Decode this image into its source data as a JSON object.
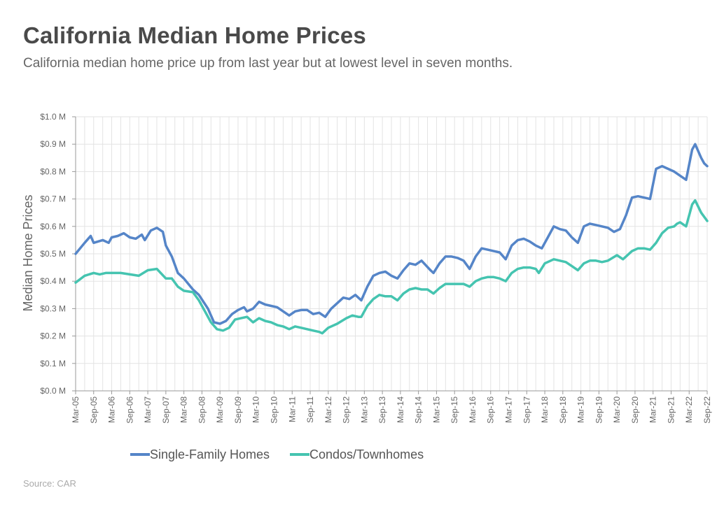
{
  "title": "California Median Home Prices",
  "subtitle": "California median home price up from last year but at lowest level in seven months.",
  "source": "Source: CAR",
  "colors": {
    "sfh": "#5585c8",
    "condo": "#45c4b0",
    "grid": "#e3e3e3",
    "axis": "#999999"
  },
  "chart_data": {
    "type": "line",
    "title": "California Median Home Prices",
    "xlabel": "",
    "ylabel": "Median Home Prices",
    "ylim": [
      0,
      1.0
    ],
    "y_ticks": [
      0,
      0.1,
      0.2,
      0.3,
      0.4,
      0.5,
      0.6,
      0.7,
      0.8,
      0.9,
      1.0
    ],
    "y_tick_labels": [
      "$0.0 M",
      "$0.1 M",
      "$0.2 M",
      "$0.3 M",
      "$0.4 M",
      "$0.5 M",
      "$0.6 M",
      "$0.7 M",
      "$0.8 M",
      "$0.9 M",
      "$1.0 M"
    ],
    "x_range": [
      "Mar-05",
      "Sep-22"
    ],
    "x_tick_labels": [
      "Mar-05",
      "Sep-05",
      "Mar-06",
      "Sep-06",
      "Mar-07",
      "Sep-07",
      "Mar-08",
      "Sep-08",
      "Mar-09",
      "Sep-09",
      "Mar-10",
      "Sep-10",
      "Mar-11",
      "Sep-11",
      "Mar-12",
      "Sep-12",
      "Mar-13",
      "Sep-13",
      "Mar-14",
      "Sep-14",
      "Mar-15",
      "Sep-15",
      "Mar-16",
      "Sep-16",
      "Mar-17",
      "Sep-17",
      "Mar-18",
      "Sep-18",
      "Mar-19",
      "Sep-19",
      "Mar-20",
      "Sep-20",
      "Mar-21",
      "Sep-21",
      "Mar-22",
      "Sep-22"
    ],
    "grid": true,
    "legend_position": "bottom",
    "series": [
      {
        "name": "Single-Family Homes",
        "color": "#5585c8",
        "points": [
          [
            "Mar-05",
            0.5
          ],
          [
            "Jun-05",
            0.54
          ],
          [
            "Aug-05",
            0.565
          ],
          [
            "Sep-05",
            0.54
          ],
          [
            "Dec-05",
            0.55
          ],
          [
            "Feb-06",
            0.54
          ],
          [
            "Mar-06",
            0.56
          ],
          [
            "May-06",
            0.565
          ],
          [
            "Jul-06",
            0.575
          ],
          [
            "Sep-06",
            0.56
          ],
          [
            "Nov-06",
            0.555
          ],
          [
            "Jan-07",
            0.57
          ],
          [
            "Feb-07",
            0.55
          ],
          [
            "Apr-07",
            0.585
          ],
          [
            "Jun-07",
            0.595
          ],
          [
            "Aug-07",
            0.58
          ],
          [
            "Sep-07",
            0.53
          ],
          [
            "Nov-07",
            0.49
          ],
          [
            "Jan-08",
            0.43
          ],
          [
            "Mar-08",
            0.41
          ],
          [
            "Jun-08",
            0.37
          ],
          [
            "Aug-08",
            0.35
          ],
          [
            "Nov-08",
            0.3
          ],
          [
            "Jan-09",
            0.25
          ],
          [
            "Mar-09",
            0.245
          ],
          [
            "May-09",
            0.255
          ],
          [
            "Jul-09",
            0.28
          ],
          [
            "Sep-09",
            0.295
          ],
          [
            "Nov-09",
            0.305
          ],
          [
            "Dec-09",
            0.29
          ],
          [
            "Feb-10",
            0.3
          ],
          [
            "Apr-10",
            0.325
          ],
          [
            "Jun-10",
            0.315
          ],
          [
            "Aug-10",
            0.31
          ],
          [
            "Oct-10",
            0.305
          ],
          [
            "Dec-10",
            0.29
          ],
          [
            "Feb-11",
            0.275
          ],
          [
            "Apr-11",
            0.29
          ],
          [
            "Jun-11",
            0.295
          ],
          [
            "Aug-11",
            0.295
          ],
          [
            "Oct-11",
            0.28
          ],
          [
            "Dec-11",
            0.285
          ],
          [
            "Feb-12",
            0.27
          ],
          [
            "Apr-12",
            0.3
          ],
          [
            "Jun-12",
            0.32
          ],
          [
            "Aug-12",
            0.34
          ],
          [
            "Oct-12",
            0.335
          ],
          [
            "Dec-12",
            0.35
          ],
          [
            "Feb-13",
            0.33
          ],
          [
            "Apr-13",
            0.38
          ],
          [
            "Jun-13",
            0.42
          ],
          [
            "Aug-13",
            0.43
          ],
          [
            "Oct-13",
            0.435
          ],
          [
            "Dec-13",
            0.42
          ],
          [
            "Feb-14",
            0.41
          ],
          [
            "Apr-14",
            0.44
          ],
          [
            "Jun-14",
            0.465
          ],
          [
            "Aug-14",
            0.46
          ],
          [
            "Oct-14",
            0.475
          ],
          [
            "Jan-15",
            0.44
          ],
          [
            "Feb-15",
            0.43
          ],
          [
            "Apr-15",
            0.465
          ],
          [
            "Jun-15",
            0.49
          ],
          [
            "Aug-15",
            0.49
          ],
          [
            "Oct-15",
            0.485
          ],
          [
            "Dec-15",
            0.475
          ],
          [
            "Feb-16",
            0.445
          ],
          [
            "Apr-16",
            0.49
          ],
          [
            "Jun-16",
            0.52
          ],
          [
            "Aug-16",
            0.515
          ],
          [
            "Oct-16",
            0.51
          ],
          [
            "Dec-16",
            0.505
          ],
          [
            "Feb-17",
            0.48
          ],
          [
            "Apr-17",
            0.53
          ],
          [
            "Jun-17",
            0.55
          ],
          [
            "Aug-17",
            0.555
          ],
          [
            "Oct-17",
            0.545
          ],
          [
            "Dec-17",
            0.53
          ],
          [
            "Feb-18",
            0.52
          ],
          [
            "Apr-18",
            0.56
          ],
          [
            "Jun-18",
            0.6
          ],
          [
            "Aug-18",
            0.59
          ],
          [
            "Oct-18",
            0.585
          ],
          [
            "Dec-18",
            0.56
          ],
          [
            "Feb-19",
            0.54
          ],
          [
            "Apr-19",
            0.6
          ],
          [
            "Jun-19",
            0.61
          ],
          [
            "Aug-19",
            0.605
          ],
          [
            "Oct-19",
            0.6
          ],
          [
            "Dec-19",
            0.595
          ],
          [
            "Feb-20",
            0.58
          ],
          [
            "Apr-20",
            0.59
          ],
          [
            "Jun-20",
            0.64
          ],
          [
            "Aug-20",
            0.705
          ],
          [
            "Oct-20",
            0.71
          ],
          [
            "Dec-20",
            0.705
          ],
          [
            "Feb-21",
            0.7
          ],
          [
            "Apr-21",
            0.81
          ],
          [
            "Jun-21",
            0.82
          ],
          [
            "Aug-21",
            0.81
          ],
          [
            "Oct-21",
            0.8
          ],
          [
            "Dec-21",
            0.785
          ],
          [
            "Feb-22",
            0.77
          ],
          [
            "Apr-22",
            0.88
          ],
          [
            "May-22",
            0.9
          ],
          [
            "Jul-22",
            0.85
          ],
          [
            "Aug-22",
            0.83
          ],
          [
            "Sep-22",
            0.82
          ]
        ]
      },
      {
        "name": "Condos/Townhomes",
        "color": "#45c4b0",
        "points": [
          [
            "Mar-05",
            0.395
          ],
          [
            "Jun-05",
            0.42
          ],
          [
            "Sep-05",
            0.43
          ],
          [
            "Nov-05",
            0.425
          ],
          [
            "Jan-06",
            0.43
          ],
          [
            "Mar-06",
            0.43
          ],
          [
            "Jun-06",
            0.43
          ],
          [
            "Sep-06",
            0.425
          ],
          [
            "Dec-06",
            0.42
          ],
          [
            "Mar-07",
            0.44
          ],
          [
            "Jun-07",
            0.445
          ],
          [
            "Sep-07",
            0.41
          ],
          [
            "Nov-07",
            0.41
          ],
          [
            "Jan-08",
            0.38
          ],
          [
            "Mar-08",
            0.365
          ],
          [
            "Jun-08",
            0.36
          ],
          [
            "Aug-08",
            0.33
          ],
          [
            "Oct-08",
            0.29
          ],
          [
            "Dec-08",
            0.25
          ],
          [
            "Feb-09",
            0.225
          ],
          [
            "Apr-09",
            0.22
          ],
          [
            "Jun-09",
            0.23
          ],
          [
            "Aug-09",
            0.26
          ],
          [
            "Oct-09",
            0.265
          ],
          [
            "Dec-09",
            0.27
          ],
          [
            "Feb-10",
            0.25
          ],
          [
            "Apr-10",
            0.265
          ],
          [
            "Jun-10",
            0.255
          ],
          [
            "Aug-10",
            0.25
          ],
          [
            "Oct-10",
            0.24
          ],
          [
            "Dec-10",
            0.235
          ],
          [
            "Feb-11",
            0.225
          ],
          [
            "Apr-11",
            0.235
          ],
          [
            "Jun-11",
            0.23
          ],
          [
            "Aug-11",
            0.225
          ],
          [
            "Oct-11",
            0.22
          ],
          [
            "Dec-11",
            0.215
          ],
          [
            "Jan-12",
            0.21
          ],
          [
            "Mar-12",
            0.23
          ],
          [
            "Jun-12",
            0.245
          ],
          [
            "Sep-12",
            0.265
          ],
          [
            "Nov-12",
            0.275
          ],
          [
            "Jan-13",
            0.27
          ],
          [
            "Feb-13",
            0.27
          ],
          [
            "Apr-13",
            0.31
          ],
          [
            "Jun-13",
            0.335
          ],
          [
            "Aug-13",
            0.35
          ],
          [
            "Oct-13",
            0.345
          ],
          [
            "Dec-13",
            0.345
          ],
          [
            "Feb-14",
            0.33
          ],
          [
            "Apr-14",
            0.355
          ],
          [
            "Jun-14",
            0.37
          ],
          [
            "Aug-14",
            0.375
          ],
          [
            "Oct-14",
            0.37
          ],
          [
            "Dec-14",
            0.37
          ],
          [
            "Feb-15",
            0.355
          ],
          [
            "Apr-15",
            0.375
          ],
          [
            "Jun-15",
            0.39
          ],
          [
            "Aug-15",
            0.39
          ],
          [
            "Oct-15",
            0.39
          ],
          [
            "Dec-15",
            0.39
          ],
          [
            "Feb-16",
            0.38
          ],
          [
            "Apr-16",
            0.4
          ],
          [
            "Jun-16",
            0.41
          ],
          [
            "Aug-16",
            0.415
          ],
          [
            "Oct-16",
            0.415
          ],
          [
            "Dec-16",
            0.41
          ],
          [
            "Feb-17",
            0.4
          ],
          [
            "Apr-17",
            0.43
          ],
          [
            "Jun-17",
            0.445
          ],
          [
            "Aug-17",
            0.45
          ],
          [
            "Oct-17",
            0.45
          ],
          [
            "Dec-17",
            0.445
          ],
          [
            "Jan-18",
            0.43
          ],
          [
            "Mar-18",
            0.465
          ],
          [
            "Jun-18",
            0.48
          ],
          [
            "Aug-18",
            0.475
          ],
          [
            "Oct-18",
            0.47
          ],
          [
            "Dec-18",
            0.455
          ],
          [
            "Feb-19",
            0.44
          ],
          [
            "Apr-19",
            0.465
          ],
          [
            "Jun-19",
            0.475
          ],
          [
            "Aug-19",
            0.475
          ],
          [
            "Oct-19",
            0.47
          ],
          [
            "Dec-19",
            0.475
          ],
          [
            "Mar-20",
            0.495
          ],
          [
            "May-20",
            0.48
          ],
          [
            "Jun-20",
            0.49
          ],
          [
            "Aug-20",
            0.51
          ],
          [
            "Oct-20",
            0.52
          ],
          [
            "Dec-20",
            0.52
          ],
          [
            "Feb-21",
            0.515
          ],
          [
            "Apr-21",
            0.54
          ],
          [
            "Jun-21",
            0.575
          ],
          [
            "Aug-21",
            0.595
          ],
          [
            "Oct-21",
            0.6
          ],
          [
            "Nov-21",
            0.61
          ],
          [
            "Dec-21",
            0.615
          ],
          [
            "Feb-22",
            0.6
          ],
          [
            "Apr-22",
            0.68
          ],
          [
            "May-22",
            0.695
          ],
          [
            "Jul-22",
            0.65
          ],
          [
            "Sep-22",
            0.62
          ]
        ]
      }
    ]
  }
}
